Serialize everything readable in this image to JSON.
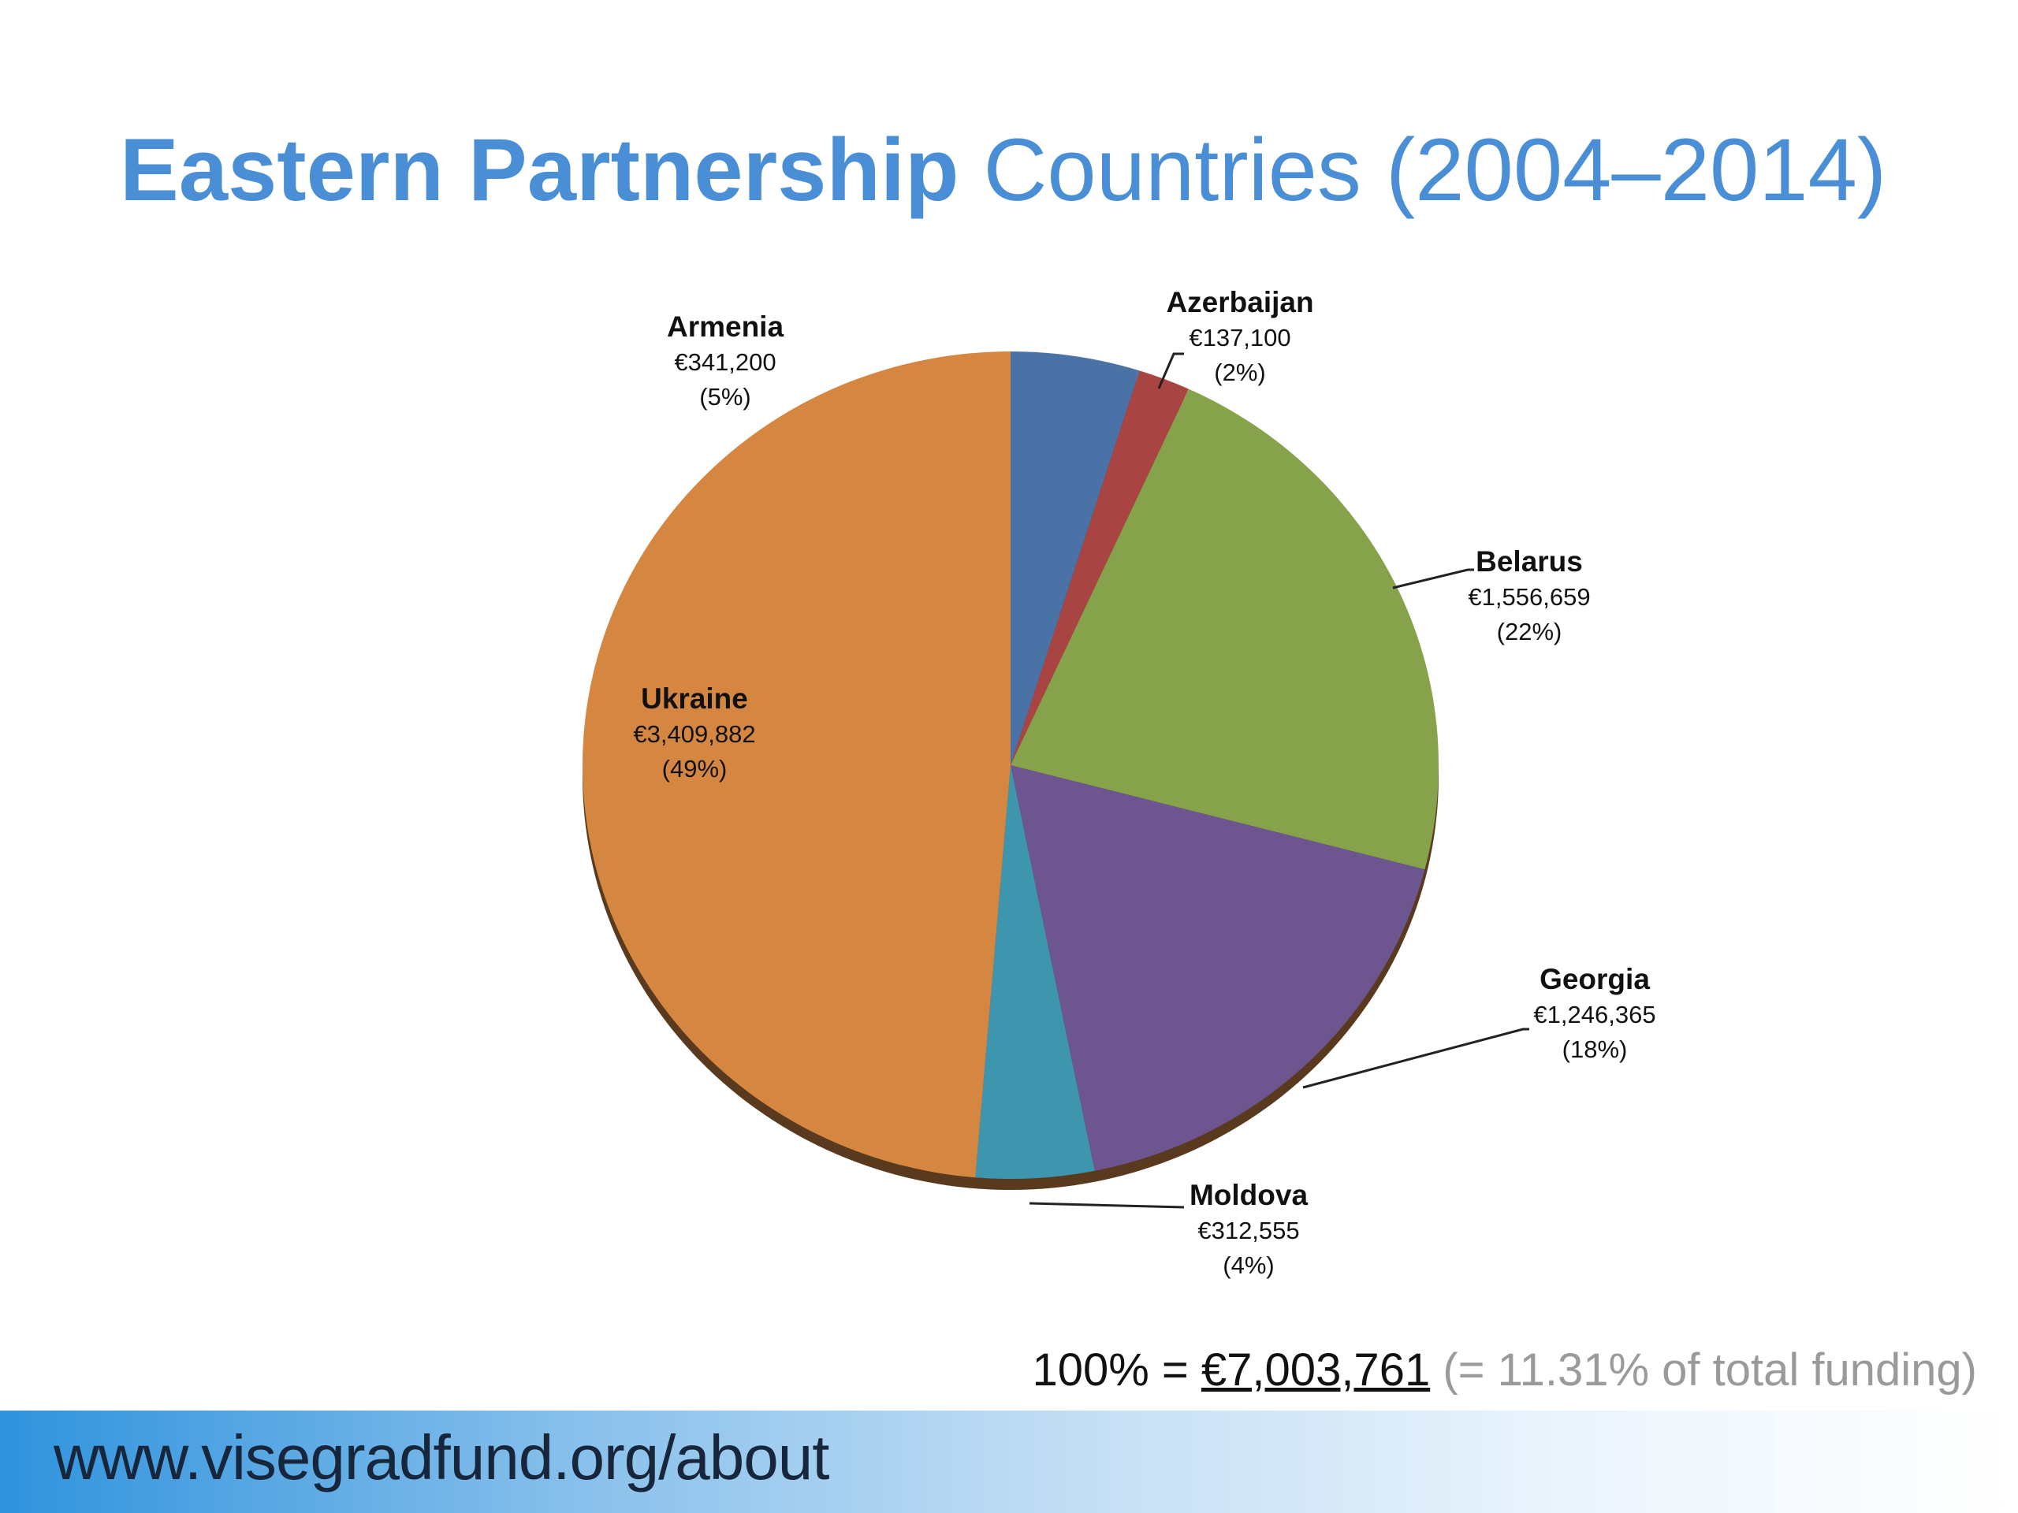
{
  "title": {
    "bold": "Eastern Partnership",
    "rest": "Countries (2004–2014)"
  },
  "chart_data": {
    "type": "pie",
    "title": "Eastern Partnership Countries (2004–2014)",
    "start": "12 o'clock, clockwise",
    "slices": [
      {
        "label": "Armenia",
        "value": 341200,
        "value_text": "€341,200",
        "percent_text": "(5%)",
        "color": "#4a72a6"
      },
      {
        "label": "Azerbaijan",
        "value": 137100,
        "value_text": "€137,100",
        "percent_text": "(2%)",
        "color": "#a84543"
      },
      {
        "label": "Belarus",
        "value": 1556659,
        "value_text": "€1,556,659",
        "percent_text": "(22%)",
        "color": "#86a24b"
      },
      {
        "label": "Georgia",
        "value": 1246365,
        "value_text": "€1,246,365",
        "percent_text": "(18%)",
        "color": "#6d5590"
      },
      {
        "label": "Moldova",
        "value": 312555,
        "value_text": "€312,555",
        "percent_text": "(4%)",
        "color": "#3e95ae"
      },
      {
        "label": "Ukraine",
        "value": 3409882,
        "value_text": "€3,409,882",
        "percent_text": "(49%)",
        "color": "#d58742"
      }
    ]
  },
  "total": {
    "prefix": "100% =",
    "amount": "€7,003,761",
    "note": "(= 11.31% of total funding)"
  },
  "footer": {
    "url": "www.visegradfund.org/about"
  }
}
